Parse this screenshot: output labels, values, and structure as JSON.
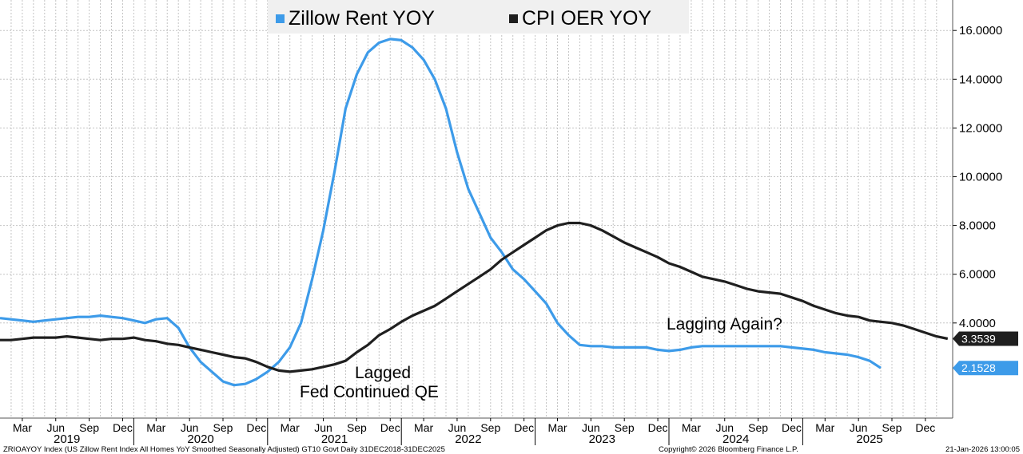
{
  "chart_data": {
    "type": "line",
    "legend": {
      "placement": "top-center"
    },
    "grid": true,
    "ylim": [
      0,
      17
    ],
    "y_ticks": [
      "16.0000",
      "14.0000",
      "12.0000",
      "10.0000",
      "8.0000",
      "6.0000",
      "4.0000"
    ],
    "y_tick_values": [
      16,
      14,
      12,
      10,
      8,
      6,
      4
    ],
    "month_ticks": [
      "Mar",
      "Jun",
      "Sep",
      "Dec",
      "Mar",
      "Jun",
      "Sep",
      "Dec",
      "Mar",
      "Jun",
      "Sep",
      "Dec",
      "Mar",
      "Jun",
      "Sep",
      "Dec",
      "Mar",
      "Jun",
      "Sep",
      "Dec",
      "Mar",
      "Jun",
      "Sep",
      "Dec",
      "Mar",
      "Jun",
      "Sep",
      "Dec"
    ],
    "year_labels": [
      "2019",
      "2020",
      "2021",
      "2022",
      "2023",
      "2024",
      "2025"
    ],
    "x_start": "2019-01",
    "series": [
      {
        "name": "Zillow Rent YOY",
        "color": "#3d9be9",
        "last_value": "2.1528",
        "values": [
          4.2,
          4.15,
          4.1,
          4.05,
          4.1,
          4.15,
          4.2,
          4.25,
          4.25,
          4.3,
          4.25,
          4.2,
          4.1,
          4.0,
          4.15,
          4.2,
          3.8,
          3.0,
          2.4,
          2.0,
          1.6,
          1.45,
          1.5,
          1.7,
          2.0,
          2.4,
          3.0,
          4.0,
          5.8,
          7.8,
          10.2,
          12.8,
          14.2,
          15.1,
          15.5,
          15.65,
          15.6,
          15.3,
          14.8,
          14.0,
          12.8,
          11.0,
          9.5,
          8.5,
          7.5,
          6.9,
          6.2,
          5.8,
          5.3,
          4.8,
          4.0,
          3.5,
          3.1,
          3.05,
          3.05,
          3.0,
          3.0,
          3.0,
          3.0,
          2.9,
          2.85,
          2.9,
          3.0,
          3.05,
          3.05,
          3.05,
          3.05,
          3.05,
          3.05,
          3.05,
          3.05,
          3.0,
          2.95,
          2.9,
          2.8,
          2.75,
          2.7,
          2.6,
          2.45,
          2.1528
        ]
      },
      {
        "name": "CPI OER YOY",
        "color": "#1f1f1f",
        "last_value": "3.3539",
        "values": [
          3.3,
          3.3,
          3.35,
          3.4,
          3.4,
          3.4,
          3.45,
          3.4,
          3.35,
          3.3,
          3.35,
          3.35,
          3.4,
          3.3,
          3.25,
          3.15,
          3.1,
          3.0,
          2.9,
          2.8,
          2.7,
          2.6,
          2.55,
          2.4,
          2.2,
          2.05,
          2.0,
          2.05,
          2.1,
          2.2,
          2.3,
          2.45,
          2.8,
          3.1,
          3.5,
          3.75,
          4.05,
          4.3,
          4.5,
          4.7,
          5.0,
          5.3,
          5.6,
          5.9,
          6.2,
          6.6,
          6.9,
          7.2,
          7.5,
          7.8,
          8.0,
          8.1,
          8.1,
          8.0,
          7.8,
          7.55,
          7.3,
          7.1,
          6.9,
          6.7,
          6.45,
          6.3,
          6.1,
          5.9,
          5.8,
          5.7,
          5.55,
          5.4,
          5.3,
          5.25,
          5.2,
          5.05,
          4.9,
          4.7,
          4.55,
          4.4,
          4.3,
          4.25,
          4.1,
          4.05,
          4.0,
          3.9,
          3.75,
          3.6,
          3.45,
          3.3539
        ]
      }
    ],
    "annotations": [
      {
        "text": "Lagged",
        "x_index": 26,
        "y": 1.75
      },
      {
        "text": "Fed Continued QE",
        "x_index": 26,
        "y": 1.0
      },
      {
        "text": "Lagging Again?",
        "x_index": 74,
        "y": 3.75
      }
    ]
  },
  "footer": {
    "left": "ZRIOAYOY Index (US Zillow Rent Index All Homes YoY Smoothed Seasonally Adjusted) GT10  Govt Daily 31DEC2018-31DEC2025",
    "center": "Copyright© 2026 Bloomberg Finance L.P.",
    "right": "21-Jan-2026 13:00:05"
  }
}
